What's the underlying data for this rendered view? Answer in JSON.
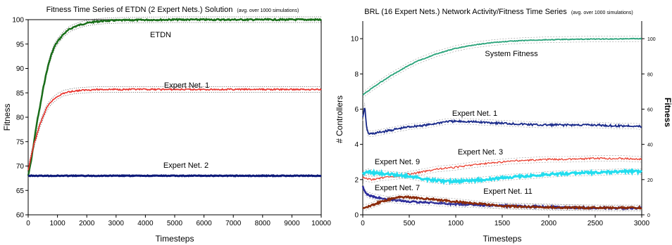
{
  "chart_data": [
    {
      "type": "line",
      "title": "Fitness Time Series of ETDN (2 Expert Nets.) Solution",
      "title_note": "(avg. over 1000 simulations)",
      "xlabel": "Timesteps",
      "ylabel": "Fitness",
      "xlim": [
        0,
        10000
      ],
      "ylim": [
        60,
        100
      ],
      "xticks": [
        0,
        1000,
        2000,
        3000,
        4000,
        5000,
        6000,
        7000,
        8000,
        9000,
        10000
      ],
      "yticks": [
        60,
        65,
        70,
        75,
        80,
        85,
        90,
        95,
        100
      ],
      "grid": false,
      "series": [
        {
          "name": "ETDN",
          "color": "#1a6e1a",
          "x": [
            0,
            100,
            200,
            300,
            400,
            500,
            600,
            700,
            800,
            900,
            1000,
            1200,
            1400,
            1600,
            1800,
            2000,
            2200,
            2500,
            2800,
            3000,
            3500,
            4000,
            5000,
            6000,
            7000,
            8000,
            9000,
            10000
          ],
          "y": [
            68,
            71,
            75,
            79,
            82,
            85.5,
            88.5,
            91,
            93,
            94.5,
            95.5,
            97,
            98,
            98.6,
            99,
            99.3,
            99.5,
            99.7,
            99.8,
            99.85,
            99.9,
            99.95,
            100,
            100,
            100,
            100,
            100,
            100
          ]
        },
        {
          "name": "Expert Net. 1",
          "color": "#e8302a",
          "x": [
            0,
            100,
            200,
            300,
            400,
            500,
            600,
            700,
            800,
            1000,
            1200,
            1400,
            1600,
            1800,
            2000,
            2500,
            3000,
            4000,
            5000,
            6000,
            7000,
            8000,
            9000,
            10000
          ],
          "y": [
            69,
            72,
            74.5,
            76.5,
            78.5,
            80,
            81.5,
            82.5,
            83.3,
            84.3,
            84.9,
            85.2,
            85.4,
            85.5,
            85.6,
            85.7,
            85.7,
            85.7,
            85.7,
            85.7,
            85.7,
            85.7,
            85.7,
            85.7
          ]
        },
        {
          "name": "Expert Net. 2",
          "color": "#0d1a7a",
          "x": [
            0,
            1000,
            2000,
            3000,
            4000,
            5000,
            6000,
            7000,
            8000,
            9000,
            10000
          ],
          "y": [
            68,
            68,
            68,
            68,
            68,
            68,
            68,
            68,
            68,
            68,
            68
          ]
        }
      ]
    },
    {
      "type": "line",
      "title": "BRL (16 Expert Nets.) Network Activity/Fitness Time Series",
      "title_note": "(avg. over 1000 simulations)",
      "xlabel": "Timesteps",
      "ylabel": "# Controllers",
      "y2label": "Fitness",
      "xlim": [
        0,
        3000
      ],
      "ylim": [
        0,
        11
      ],
      "y2lim": [
        0,
        110
      ],
      "xticks": [
        0,
        500,
        1000,
        1500,
        2000,
        2500,
        3000
      ],
      "yticks": [
        0,
        2,
        4,
        6,
        8,
        10
      ],
      "y2ticks": [
        0,
        20,
        40,
        60,
        80,
        100
      ],
      "grid": false,
      "series": [
        {
          "name": "System Fitness",
          "axis": "right",
          "color": "#2aa37a",
          "x": [
            0,
            100,
            200,
            300,
            400,
            500,
            600,
            700,
            800,
            900,
            1000,
            1200,
            1400,
            1600,
            1800,
            2000,
            2200,
            2500,
            2800,
            3000
          ],
          "y": [
            68,
            72,
            75.5,
            79,
            82,
            85,
            87.5,
            89.5,
            91.5,
            93,
            94.5,
            96.5,
            97.8,
            98.6,
            99.1,
            99.4,
            99.6,
            99.8,
            99.9,
            100
          ]
        },
        {
          "name": "Expert Net. 1",
          "axis": "left",
          "color": "#1a2a8a",
          "x": [
            0,
            20,
            40,
            60,
            100,
            200,
            300,
            500,
            700,
            900,
            1100,
            1300,
            1500,
            1700,
            1900,
            2100,
            2300,
            2500,
            2700,
            2900,
            3000
          ],
          "y": [
            5.5,
            6.2,
            5.0,
            4.6,
            4.6,
            4.7,
            4.8,
            5.0,
            5.1,
            5.3,
            5.3,
            5.25,
            5.2,
            5.15,
            5.1,
            5.1,
            5.1,
            5.1,
            5.05,
            5.05,
            5.0
          ]
        },
        {
          "name": "Expert Net. 3",
          "axis": "left",
          "color": "#e83a2a",
          "x": [
            0,
            100,
            200,
            400,
            600,
            800,
            1000,
            1200,
            1400,
            1600,
            1800,
            2000,
            2200,
            2500,
            2800,
            3000
          ],
          "y": [
            2.1,
            2.0,
            2.1,
            2.2,
            2.4,
            2.6,
            2.7,
            2.85,
            2.95,
            3.05,
            3.1,
            3.15,
            3.15,
            3.2,
            3.2,
            3.15
          ]
        },
        {
          "name": "Expert Net. 9",
          "axis": "left",
          "color": "#22ddee",
          "x": [
            0,
            50,
            100,
            200,
            300,
            400,
            500,
            700,
            900,
            1000,
            1200,
            1400,
            1600,
            1800,
            2000,
            2200,
            2500,
            2800,
            3000
          ],
          "y": [
            2.3,
            2.45,
            2.4,
            2.35,
            2.3,
            2.25,
            2.2,
            2.0,
            1.9,
            1.9,
            1.95,
            2.05,
            2.15,
            2.2,
            2.3,
            2.35,
            2.4,
            2.45,
            2.45
          ]
        },
        {
          "name": "Expert Net. 7",
          "axis": "left",
          "color": "#2a2a9a",
          "x": [
            0,
            20,
            50,
            100,
            200,
            300,
            500,
            700,
            1000,
            1300,
            1600,
            2000,
            2400,
            2800,
            3000
          ],
          "y": [
            1.6,
            1.3,
            1.15,
            1.05,
            0.95,
            0.85,
            0.75,
            0.7,
            0.6,
            0.55,
            0.5,
            0.45,
            0.4,
            0.38,
            0.38
          ]
        },
        {
          "name": "Expert Net. 11",
          "axis": "left",
          "color": "#8a2a0a",
          "x": [
            0,
            50,
            100,
            200,
            300,
            400,
            500,
            700,
            900,
            1100,
            1300,
            1500,
            1800,
            2100,
            2400,
            2700,
            3000
          ],
          "y": [
            0.4,
            0.45,
            0.55,
            0.75,
            0.9,
            1.0,
            1.0,
            0.9,
            0.8,
            0.7,
            0.6,
            0.5,
            0.45,
            0.42,
            0.4,
            0.4,
            0.4
          ]
        }
      ],
      "annotations": [
        "System Fitness",
        "Expert Net. 1",
        "Expert Net. 3",
        "Expert Net. 9",
        "Expert Net. 7",
        "Expert Net. 11"
      ]
    }
  ]
}
